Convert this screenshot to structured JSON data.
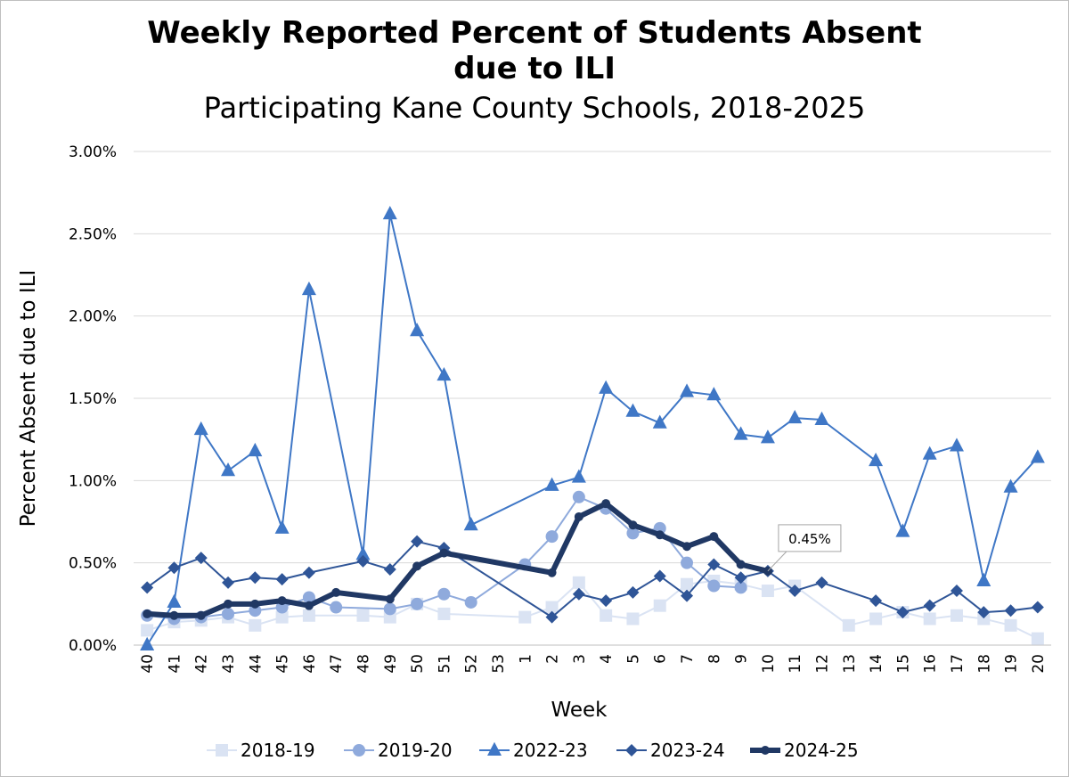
{
  "chart_data": {
    "type": "line",
    "title_line1": "Weekly Reported Percent of Students Absent",
    "title_line2": "due to ILI",
    "subtitle": "Participating Kane County Schools, 2018-2025",
    "xlabel": "Week",
    "ylabel": "Percent Absent due to ILI",
    "ylim": [
      0,
      3
    ],
    "y_ticks": [
      "0.00%",
      "0.50%",
      "1.00%",
      "1.50%",
      "2.00%",
      "2.50%",
      "3.00%"
    ],
    "y_tick_values": [
      0,
      0.5,
      1.0,
      1.5,
      2.0,
      2.5,
      3.0
    ],
    "grid": "horizontal",
    "legend_position": "bottom",
    "categories": [
      "40",
      "41",
      "42",
      "43",
      "44",
      "45",
      "46",
      "47",
      "48",
      "49",
      "50",
      "51",
      "52",
      "53",
      "1",
      "2",
      "3",
      "4",
      "5",
      "6",
      "7",
      "8",
      "9",
      "10",
      "11",
      "12",
      "13",
      "14",
      "15",
      "16",
      "17",
      "18",
      "19",
      "20"
    ],
    "series": [
      {
        "name": "2018-19",
        "color": "#dae3f3",
        "marker": "square",
        "values": [
          0.09,
          0.14,
          0.15,
          0.17,
          0.12,
          0.17,
          0.18,
          null,
          0.18,
          0.17,
          0.25,
          0.19,
          null,
          null,
          0.17,
          0.23,
          0.38,
          0.18,
          0.16,
          0.24,
          0.37,
          0.39,
          0.37,
          0.33,
          0.36,
          null,
          0.12,
          0.16,
          0.2,
          0.16,
          0.18,
          0.16,
          0.12,
          0.04
        ]
      },
      {
        "name": "2019-20",
        "color": "#8faadc",
        "marker": "circle",
        "values": [
          0.18,
          0.16,
          0.17,
          0.19,
          0.21,
          0.23,
          0.29,
          0.23,
          null,
          0.22,
          0.25,
          0.31,
          0.26,
          null,
          0.49,
          0.66,
          0.9,
          0.83,
          0.68,
          0.71,
          0.5,
          0.36,
          0.35,
          null,
          null,
          null,
          null,
          null,
          null,
          null,
          null,
          null,
          null,
          null
        ]
      },
      {
        "name": "2022-23",
        "color": "#3f77c6",
        "marker": "triangle",
        "values": [
          0.0,
          0.26,
          1.31,
          1.06,
          1.18,
          0.71,
          2.16,
          null,
          0.55,
          2.62,
          1.91,
          1.64,
          0.73,
          null,
          null,
          0.97,
          1.02,
          1.56,
          1.42,
          1.35,
          1.54,
          1.52,
          1.28,
          1.26,
          1.38,
          1.37,
          null,
          1.12,
          0.69,
          1.16,
          1.21,
          0.39,
          0.96,
          1.14
        ]
      },
      {
        "name": "2023-24",
        "color": "#2f5597",
        "marker": "diamond",
        "values": [
          0.35,
          0.47,
          0.53,
          0.38,
          0.41,
          0.4,
          0.44,
          null,
          0.51,
          0.46,
          0.63,
          0.59,
          null,
          null,
          null,
          0.17,
          0.31,
          0.27,
          0.32,
          0.42,
          0.3,
          0.49,
          0.41,
          0.45,
          0.33,
          0.38,
          null,
          0.27,
          0.2,
          0.24,
          0.33,
          0.2,
          0.21,
          0.23
        ]
      },
      {
        "name": "2024-25",
        "color": "#203864",
        "marker": "circle-bold",
        "values": [
          0.19,
          0.18,
          0.18,
          0.25,
          0.25,
          0.27,
          0.24,
          0.32,
          null,
          0.28,
          0.48,
          0.56,
          null,
          null,
          null,
          0.44,
          0.78,
          0.86,
          0.73,
          0.67,
          0.6,
          0.66,
          0.49,
          0.45,
          null,
          null,
          null,
          null,
          null,
          null,
          null,
          null,
          null,
          null
        ]
      }
    ],
    "annotation": {
      "text": "0.45%",
      "category": "10",
      "series": "2024-25"
    }
  }
}
